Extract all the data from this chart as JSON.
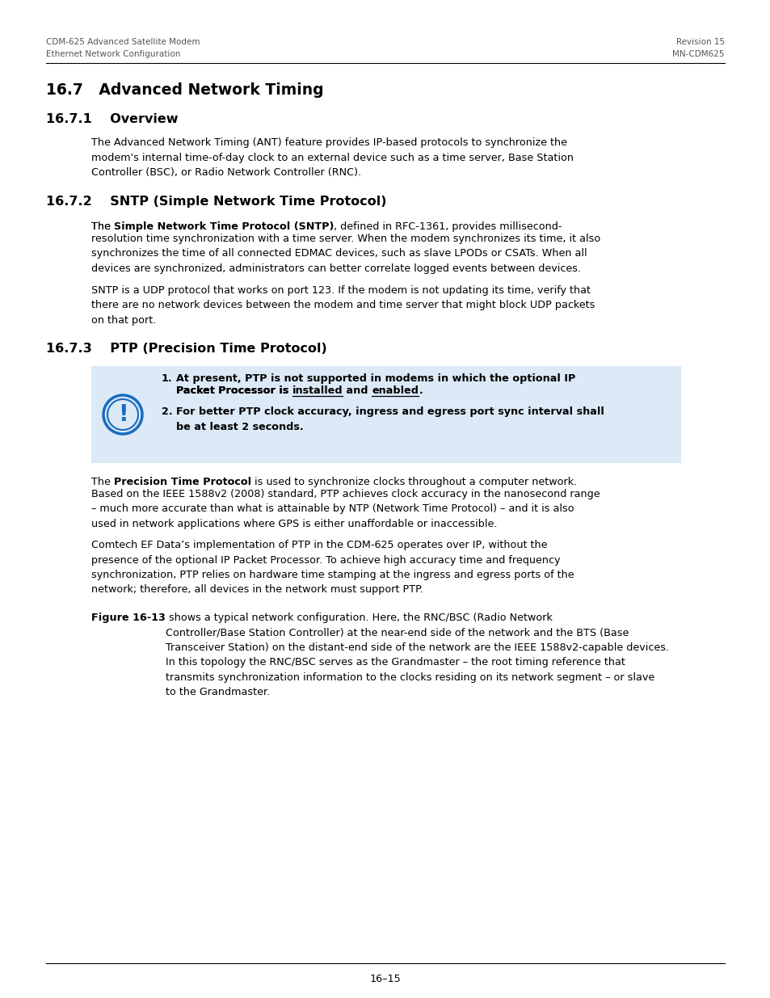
{
  "header_left_line1": "CDM-625 Advanced Satellite Modem",
  "header_left_line2": "Ethernet Network Configuration",
  "header_right_line1": "Revision 15",
  "header_right_line2": "MN-CDM625",
  "section_title": "16.7   Advanced Network Timing",
  "sub1_title": "16.7.1    Overview",
  "sub1_body": "The Advanced Network Timing (ANT) feature provides IP-based protocols to synchronize the\nmodem's internal time-of-day clock to an external device such as a time server, Base Station\nController (BSC), or Radio Network Controller (RNC).",
  "sub2_title": "16.7.2    SNTP (Simple Network Time Protocol)",
  "sub2_body2": "SNTP is a UDP protocol that works on port 123. If the modem is not updating its time, verify that\nthere are no network devices between the modem and time server that might block UDP packets\non that port.",
  "sub3_title": "16.7.3    PTP (Precision Time Protocol)",
  "note1_line1": "At present, PTP is not supported in modems in which the optional IP",
  "note1_line2_pre": "Packet Processor is ",
  "note1_underline1": "installed",
  "note1_and": " and ",
  "note1_underline2": "enabled",
  "note1_dot": ".",
  "note2_text": "For better PTP clock accuracy, ingress and egress port sync interval shall\nbe at least 2 seconds.",
  "sub3_body2": "Comtech EF Data’s implementation of PTP in the CDM-625 operates over IP, without the\npresence of the optional IP Packet Processor. To achieve high accuracy time and frequency\nsynchronization, PTP relies on hardware time stamping at the ingress and egress ports of the\nnetwork; therefore, all devices in the network must support PTP.",
  "sub3_body3_bold": "Figure 16-13",
  "sub3_body3_plain": " shows a typical network configuration. Here, the RNC/BSC (Radio Network\nController/Base Station Controller) at the near-end side of the network and the BTS (Base\nTransceiver Station) on the distant-end side of the network are the IEEE 1588v2-capable devices.\nIn this topology the RNC/BSC serves as the Grandmaster – the root timing reference that\ntransmits synchronization information to the clocks residing on its network segment – or slave\nto the Grandmaster.",
  "footer_page": "16–15",
  "bg_color": "#ffffff",
  "text_color": "#000000",
  "note_box_color": "#dce9f7",
  "note_icon_color": "#1a6bbf",
  "header_color": "#555555"
}
